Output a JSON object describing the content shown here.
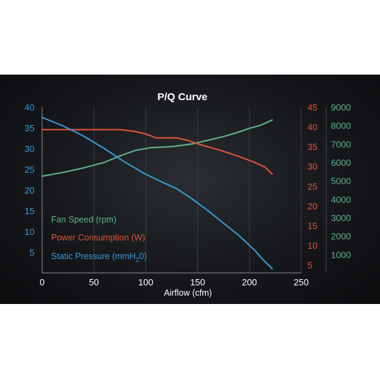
{
  "chart_data": {
    "type": "line",
    "title": "P/Q Curve",
    "xlabel": "Airflow (cfm)",
    "xlim": [
      0,
      250
    ],
    "x_ticks": [
      "0",
      "50",
      "100",
      "150",
      "200",
      "250"
    ],
    "grid": true,
    "legend_position": "lower-left",
    "axes": {
      "left": {
        "series": "static_pressure",
        "ylim": [
          0,
          40
        ],
        "ticks": [
          "5",
          "10",
          "15",
          "20",
          "25",
          "30",
          "35",
          "40"
        ],
        "color": "#3a9ad9"
      },
      "right1": {
        "series": "power",
        "ylim": [
          3,
          45
        ],
        "ticks": [
          "5",
          "10",
          "15",
          "20",
          "25",
          "30",
          "35",
          "40",
          "45"
        ],
        "color": "#e0563a"
      },
      "right2": {
        "series": "fan_speed",
        "ylim": [
          0,
          9000
        ],
        "ticks": [
          "1000",
          "2000",
          "3000",
          "4000",
          "5000",
          "6000",
          "7000",
          "8000",
          "9000"
        ],
        "color": "#5fb48a"
      }
    },
    "series": [
      {
        "id": "fan_speed",
        "name": "Fan Speed (rpm)",
        "color": "#5fb48a",
        "axis": "right2",
        "points": [
          [
            0,
            5250
          ],
          [
            20,
            5450
          ],
          [
            40,
            5700
          ],
          [
            60,
            6000
          ],
          [
            75,
            6350
          ],
          [
            90,
            6650
          ],
          [
            105,
            6800
          ],
          [
            125,
            6850
          ],
          [
            145,
            7000
          ],
          [
            160,
            7200
          ],
          [
            175,
            7400
          ],
          [
            190,
            7650
          ],
          [
            200,
            7850
          ],
          [
            210,
            8000
          ],
          [
            222,
            8300
          ]
        ]
      },
      {
        "id": "power",
        "name": "Power Consumption (W)",
        "color": "#e0563a",
        "axis": "right1",
        "points": [
          [
            0,
            39.3
          ],
          [
            20,
            39.3
          ],
          [
            50,
            39.3
          ],
          [
            75,
            39.3
          ],
          [
            90,
            38.8
          ],
          [
            100,
            38.2
          ],
          [
            110,
            37.2
          ],
          [
            130,
            37.2
          ],
          [
            140,
            36.6
          ],
          [
            155,
            35.3
          ],
          [
            170,
            34.2
          ],
          [
            190,
            32.5
          ],
          [
            205,
            31.0
          ],
          [
            215,
            29.8
          ],
          [
            222,
            28.0
          ]
        ]
      },
      {
        "id": "static_pressure",
        "name": "Static Pressure (mmH2O)",
        "color": "#3a9ad9",
        "axis": "left",
        "points": [
          [
            0,
            37.5
          ],
          [
            20,
            35.5
          ],
          [
            40,
            33.0
          ],
          [
            60,
            30.0
          ],
          [
            80,
            26.7
          ],
          [
            100,
            23.8
          ],
          [
            115,
            22.0
          ],
          [
            130,
            20.3
          ],
          [
            145,
            17.8
          ],
          [
            160,
            15.0
          ],
          [
            175,
            12.0
          ],
          [
            190,
            9.0
          ],
          [
            205,
            5.5
          ],
          [
            212,
            3.5
          ],
          [
            222,
            1.0
          ]
        ]
      }
    ],
    "legend": {
      "fan_speed": "Fan Speed (rpm)",
      "power": "Power Consumption (W)",
      "static_pressure_main": "Static Pressure (mmH",
      "static_pressure_sub": "2",
      "static_pressure_end": "0)"
    }
  }
}
